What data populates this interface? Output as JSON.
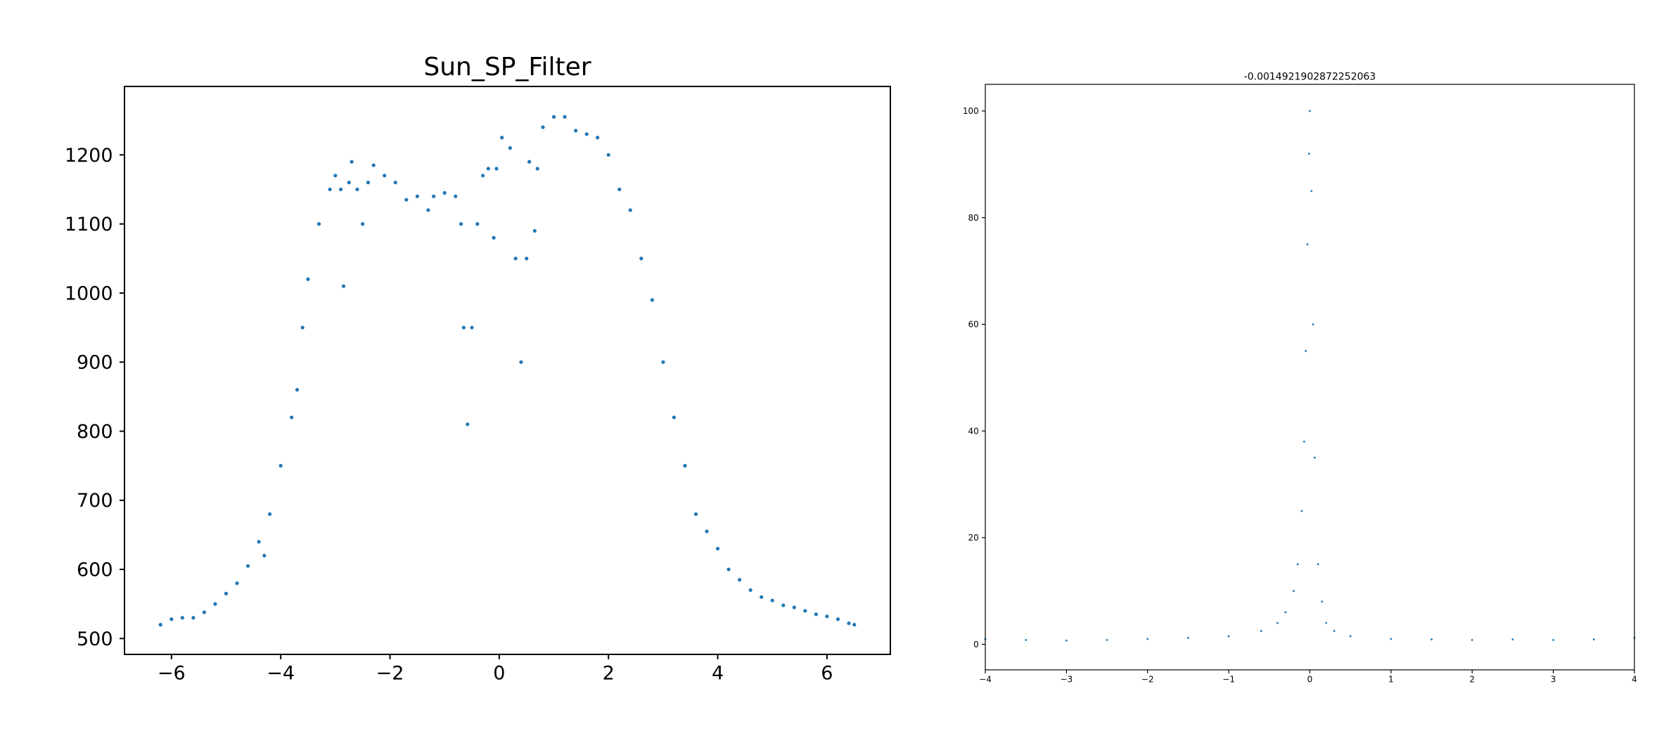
{
  "chart_data": [
    {
      "type": "scatter",
      "title": "Sun_SP_Filter",
      "color": "#1f77b4",
      "x": [
        -6.2,
        -6.0,
        -5.8,
        -5.6,
        -5.4,
        -5.2,
        -5.0,
        -4.8,
        -4.6,
        -4.4,
        -4.3,
        -4.2,
        -4.0,
        -3.8,
        -3.7,
        -3.6,
        -3.5,
        -3.3,
        -3.1,
        -3.0,
        -2.9,
        -2.85,
        -2.75,
        -2.7,
        -2.6,
        -2.5,
        -2.4,
        -2.3,
        -2.1,
        -1.9,
        -1.7,
        -1.5,
        -1.3,
        -1.2,
        -1.0,
        -0.8,
        -0.7,
        -0.65,
        -0.58,
        -0.5,
        -0.4,
        -0.3,
        -0.2,
        -0.1,
        -0.05,
        0.05,
        0.2,
        0.3,
        0.4,
        0.5,
        0.55,
        0.65,
        0.7,
        0.8,
        1.0,
        1.2,
        1.4,
        1.6,
        1.8,
        2.0,
        2.2,
        2.4,
        2.6,
        2.8,
        3.0,
        3.2,
        3.4,
        3.6,
        3.8,
        4.0,
        4.2,
        4.4,
        4.6,
        4.8,
        5.0,
        5.2,
        5.4,
        5.6,
        5.8,
        6.0,
        6.2,
        6.4,
        6.5
      ],
      "values": [
        520,
        528,
        530,
        530,
        538,
        550,
        565,
        580,
        605,
        640,
        620,
        680,
        750,
        820,
        860,
        950,
        1020,
        1100,
        1150,
        1170,
        1150,
        1010,
        1160,
        1190,
        1150,
        1100,
        1160,
        1185,
        1170,
        1160,
        1135,
        1140,
        1120,
        1140,
        1145,
        1140,
        1100,
        950,
        810,
        950,
        1100,
        1170,
        1180,
        1080,
        1180,
        1225,
        1210,
        1050,
        900,
        1050,
        1190,
        1090,
        1180,
        1240,
        1255,
        1255,
        1235,
        1230,
        1225,
        1200,
        1150,
        1120,
        1050,
        990,
        900,
        820,
        750,
        680,
        655,
        630,
        600,
        585,
        570,
        560,
        555,
        548,
        545,
        540,
        535,
        532,
        528,
        522,
        520
      ],
      "xlim": [
        -6.86,
        7.16
      ],
      "xticks": [
        {
          "value": -6,
          "label": "−6"
        },
        {
          "value": -4,
          "label": "−4"
        },
        {
          "value": -2,
          "label": "−2"
        },
        0,
        2,
        4,
        6
      ],
      "ylim": [
        477,
        1299
      ],
      "yticks": [
        500,
        600,
        700,
        800,
        900,
        1000,
        1100,
        1200
      ]
    },
    {
      "type": "scatter",
      "title": "-0.0014921902872252063",
      "color": "#1f77b4",
      "x": [
        -4,
        -3.5,
        -3,
        -2.5,
        -2,
        -1.5,
        -1,
        -0.6,
        -0.4,
        -0.3,
        -0.2,
        -0.15,
        -0.1,
        -0.07,
        -0.05,
        -0.03,
        -0.01,
        0,
        0.02,
        0.04,
        0.06,
        0.1,
        0.15,
        0.2,
        0.3,
        0.5,
        1,
        1.5,
        2,
        2.5,
        3,
        3.5,
        4
      ],
      "values": [
        1,
        0.8,
        0.7,
        0.8,
        1,
        1.2,
        1.5,
        2.5,
        4,
        6,
        10,
        15,
        25,
        38,
        55,
        75,
        92,
        100,
        85,
        60,
        35,
        15,
        8,
        4,
        2.5,
        1.5,
        1,
        0.9,
        0.8,
        0.9,
        0.8,
        0.9,
        1.2
      ],
      "xlim": [
        -4,
        4
      ],
      "xticks": [
        {
          "value": -4,
          "label": "−4"
        },
        {
          "value": -3,
          "label": "−3"
        },
        {
          "value": -2,
          "label": "−2"
        },
        {
          "value": -1,
          "label": "−1"
        },
        0,
        1,
        2,
        3,
        4
      ],
      "ylim": [
        -4.8,
        105
      ],
      "yticks": [
        0,
        20,
        40,
        60,
        80,
        100
      ]
    }
  ]
}
